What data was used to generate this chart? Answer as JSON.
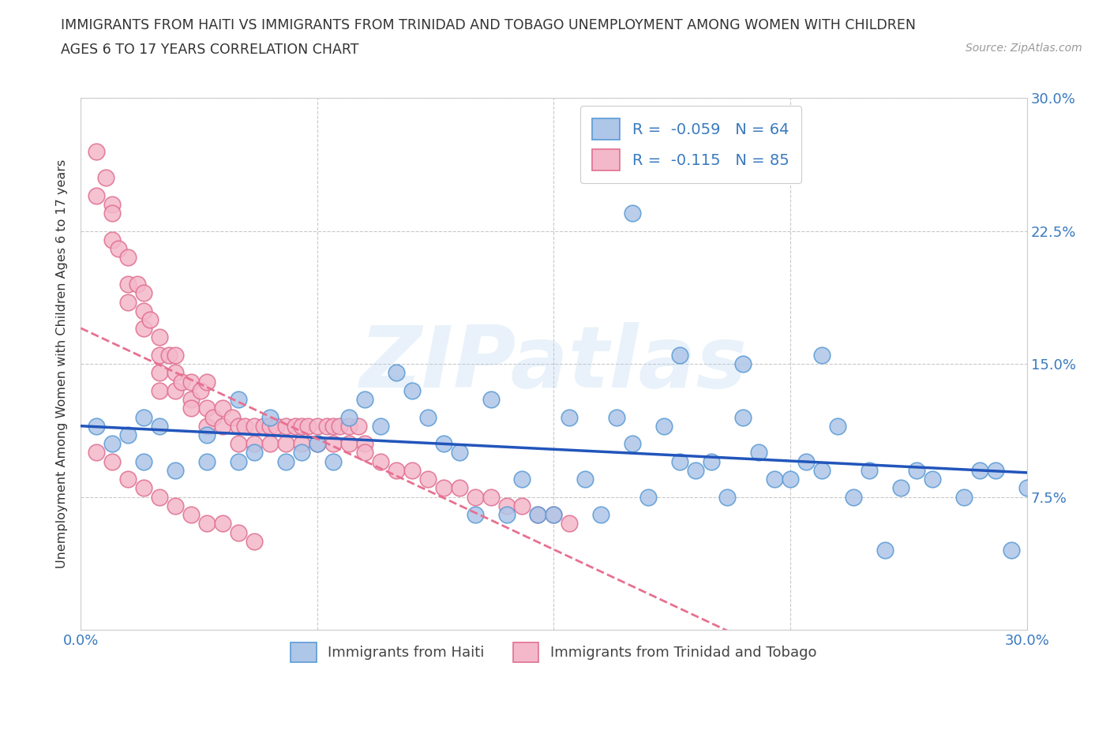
{
  "title_line1": "IMMIGRANTS FROM HAITI VS IMMIGRANTS FROM TRINIDAD AND TOBAGO UNEMPLOYMENT AMONG WOMEN WITH CHILDREN",
  "title_line2": "AGES 6 TO 17 YEARS CORRELATION CHART",
  "source": "Source: ZipAtlas.com",
  "ylabel": "Unemployment Among Women with Children Ages 6 to 17 years",
  "xlim": [
    0.0,
    0.3
  ],
  "ylim": [
    0.0,
    0.3
  ],
  "xtick_positions": [
    0.0,
    0.075,
    0.15,
    0.225,
    0.3
  ],
  "xticklabels": [
    "0.0%",
    "",
    "",
    "",
    "30.0%"
  ],
  "ytick_positions": [
    0.0,
    0.075,
    0.15,
    0.225,
    0.3
  ],
  "right_yticklabels": [
    "",
    "7.5%",
    "15.0%",
    "22.5%",
    "30.0%"
  ],
  "haiti_color": "#aec6e8",
  "haiti_edge": "#5b9bd5",
  "tt_color": "#f4b8cb",
  "tt_edge": "#e07090",
  "regression_haiti_color": "#2255bb",
  "regression_tt_color": "#e87090",
  "haiti_R": -0.059,
  "haiti_N": 64,
  "tt_R": -0.115,
  "tt_N": 85,
  "grid_color": "#bbbbbb",
  "background_color": "#ffffff",
  "watermark": "ZIPatlas",
  "haiti_x": [
    0.005,
    0.01,
    0.015,
    0.02,
    0.02,
    0.025,
    0.03,
    0.04,
    0.04,
    0.05,
    0.05,
    0.055,
    0.06,
    0.065,
    0.07,
    0.075,
    0.08,
    0.085,
    0.09,
    0.095,
    0.1,
    0.105,
    0.11,
    0.115,
    0.12,
    0.125,
    0.13,
    0.135,
    0.14,
    0.145,
    0.15,
    0.155,
    0.16,
    0.165,
    0.17,
    0.175,
    0.18,
    0.185,
    0.19,
    0.195,
    0.2,
    0.205,
    0.21,
    0.215,
    0.22,
    0.225,
    0.23,
    0.235,
    0.24,
    0.245,
    0.25,
    0.255,
    0.26,
    0.265,
    0.27,
    0.28,
    0.285,
    0.29,
    0.295,
    0.3,
    0.175,
    0.19,
    0.21,
    0.235
  ],
  "haiti_y": [
    0.115,
    0.105,
    0.11,
    0.12,
    0.095,
    0.115,
    0.09,
    0.095,
    0.11,
    0.095,
    0.13,
    0.1,
    0.12,
    0.095,
    0.1,
    0.105,
    0.095,
    0.12,
    0.13,
    0.115,
    0.145,
    0.135,
    0.12,
    0.105,
    0.1,
    0.065,
    0.13,
    0.065,
    0.085,
    0.065,
    0.065,
    0.12,
    0.085,
    0.065,
    0.12,
    0.105,
    0.075,
    0.115,
    0.095,
    0.09,
    0.095,
    0.075,
    0.12,
    0.1,
    0.085,
    0.085,
    0.095,
    0.09,
    0.115,
    0.075,
    0.09,
    0.045,
    0.08,
    0.09,
    0.085,
    0.075,
    0.09,
    0.09,
    0.045,
    0.08,
    0.235,
    0.155,
    0.15,
    0.155
  ],
  "tt_x": [
    0.005,
    0.005,
    0.008,
    0.01,
    0.01,
    0.01,
    0.012,
    0.015,
    0.015,
    0.015,
    0.018,
    0.02,
    0.02,
    0.02,
    0.022,
    0.025,
    0.025,
    0.025,
    0.025,
    0.028,
    0.03,
    0.03,
    0.03,
    0.032,
    0.035,
    0.035,
    0.035,
    0.038,
    0.04,
    0.04,
    0.04,
    0.042,
    0.045,
    0.045,
    0.048,
    0.05,
    0.05,
    0.052,
    0.055,
    0.055,
    0.058,
    0.06,
    0.06,
    0.062,
    0.065,
    0.065,
    0.068,
    0.07,
    0.07,
    0.072,
    0.075,
    0.075,
    0.078,
    0.08,
    0.08,
    0.082,
    0.085,
    0.085,
    0.088,
    0.09,
    0.09,
    0.095,
    0.1,
    0.105,
    0.11,
    0.115,
    0.12,
    0.125,
    0.13,
    0.135,
    0.14,
    0.145,
    0.15,
    0.155,
    0.005,
    0.01,
    0.015,
    0.02,
    0.025,
    0.03,
    0.035,
    0.04,
    0.045,
    0.05,
    0.055
  ],
  "tt_y": [
    0.27,
    0.245,
    0.255,
    0.24,
    0.235,
    0.22,
    0.215,
    0.21,
    0.195,
    0.185,
    0.195,
    0.19,
    0.18,
    0.17,
    0.175,
    0.165,
    0.155,
    0.145,
    0.135,
    0.155,
    0.155,
    0.145,
    0.135,
    0.14,
    0.14,
    0.13,
    0.125,
    0.135,
    0.14,
    0.125,
    0.115,
    0.12,
    0.125,
    0.115,
    0.12,
    0.115,
    0.105,
    0.115,
    0.115,
    0.105,
    0.115,
    0.115,
    0.105,
    0.115,
    0.115,
    0.105,
    0.115,
    0.115,
    0.105,
    0.115,
    0.115,
    0.105,
    0.115,
    0.115,
    0.105,
    0.115,
    0.115,
    0.105,
    0.115,
    0.105,
    0.1,
    0.095,
    0.09,
    0.09,
    0.085,
    0.08,
    0.08,
    0.075,
    0.075,
    0.07,
    0.07,
    0.065,
    0.065,
    0.06,
    0.1,
    0.095,
    0.085,
    0.08,
    0.075,
    0.07,
    0.065,
    0.06,
    0.06,
    0.055,
    0.05
  ]
}
